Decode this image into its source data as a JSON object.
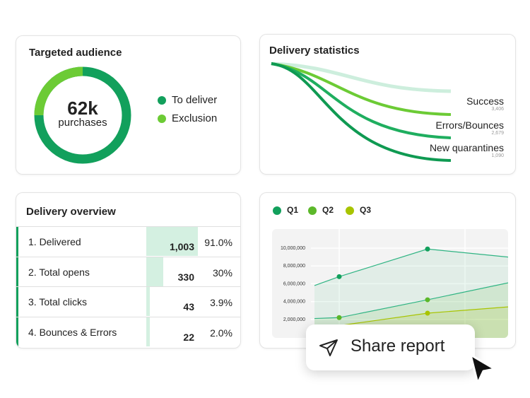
{
  "audience": {
    "title": "Targeted audience",
    "value": "62k",
    "unit": "purchases",
    "exclusion_fraction": 0.25,
    "legend": [
      {
        "label": "To deliver",
        "color": "#12a05c"
      },
      {
        "label": "Exclusion",
        "color": "#6ccb35"
      }
    ]
  },
  "stats": {
    "title": "Delivery statistics",
    "items": [
      {
        "label": "Success",
        "value": "3,406"
      },
      {
        "label": "Errors/Bounces",
        "value": "2,679"
      },
      {
        "label": "New quarantines",
        "value": "1,090"
      }
    ]
  },
  "overview": {
    "title": "Delivery overview",
    "rows": [
      {
        "label": "1. Delivered",
        "value": "1,003",
        "pct": "91.0%",
        "fraction": 0.91
      },
      {
        "label": "2. Total opens",
        "value": "330",
        "pct": "30%",
        "fraction": 0.3
      },
      {
        "label": "3. Total clicks",
        "value": "43",
        "pct": "3.9%",
        "fraction": 0.039
      },
      {
        "label": "4. Bounces & Errors",
        "value": "22",
        "pct": "2.0%",
        "fraction": 0.02
      }
    ]
  },
  "chart_data": {
    "type": "area",
    "ylim": [
      0,
      10000000
    ],
    "yticks": [
      "10,000,000",
      "8,000,000",
      "6,000,000",
      "4,000,000",
      "2,000,000"
    ],
    "grid": true,
    "legend": "top-left",
    "series": [
      {
        "name": "Q1",
        "color": "#12a05c",
        "values": [
          5800000,
          6800000,
          9900000,
          9000000
        ]
      },
      {
        "name": "Q2",
        "color": "#5cb82a",
        "values": [
          2100000,
          2200000,
          4200000,
          6100000
        ]
      },
      {
        "name": "Q3",
        "color": "#a8c400",
        "values": [
          800000,
          1300000,
          2700000,
          3400000
        ]
      }
    ]
  },
  "share": {
    "label": "Share report"
  }
}
